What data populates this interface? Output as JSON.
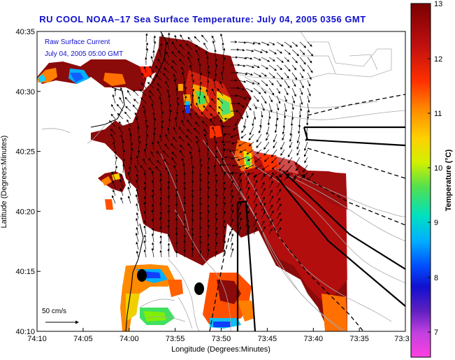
{
  "title": "RU COOL  NOAA–17  Sea Surface Temperature:  July 04, 2005 0356 GMT",
  "legend": {
    "line1": "Raw Surface Current",
    "line2": "July 04, 2005 05:00 GMT"
  },
  "scale_label": "50 cm/s",
  "x_axis": {
    "label": "Longitude (Degrees:Minutes)",
    "ticks": [
      "74:10",
      "74:05",
      "74:00",
      "73:55",
      "73:50",
      "73:45",
      "73:40",
      "73:35",
      "73:3"
    ]
  },
  "y_axis": {
    "label": "Latitude (Degrees:Minutes)",
    "ticks": [
      "40:35",
      "40:30",
      "40:25",
      "40:20",
      "40:15",
      "40:10"
    ]
  },
  "colorbar": {
    "label": "Temperature (°C)",
    "ticks": [
      "13",
      "12",
      "11",
      "10",
      "9",
      "8",
      "7"
    ]
  },
  "colors": {
    "title": "#1010cc",
    "sst_warm": "#8b0a0a",
    "sst_red": "#d81818",
    "sst_orange": "#ff7a00",
    "sst_yellow": "#f0e000",
    "sst_green": "#40e060",
    "sst_cyan": "#00d0f0",
    "sst_blue": "#1040ff",
    "land_contour": "#a8a8a8"
  }
}
